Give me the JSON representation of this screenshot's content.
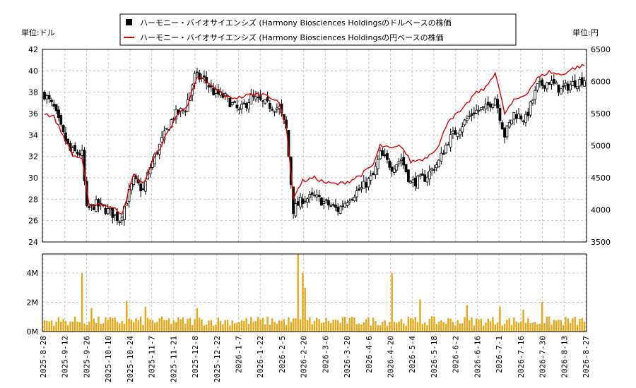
{
  "legend": {
    "usd_label": "ハーモニー・バイオサイエンシズ (Harmony Biosciences Holdingsのドルベースの株価",
    "jpy_label": "ハーモニー・バイオサイエンシズ (Harmony Biosciences Holdingsの円ベースの株価"
  },
  "unit_left": "単位:ドル",
  "unit_right": "単位:円",
  "colors": {
    "candle": "#000000",
    "jpy_line": "#dd0000",
    "volume": "#e6a817",
    "grid": "#c8c8c8"
  },
  "chart_data": [
    {
      "type": "candlestick",
      "y_left": {
        "ticks": [
          24,
          26,
          28,
          30,
          32,
          34,
          36,
          38,
          40,
          42
        ],
        "ylim": [
          24,
          42
        ]
      },
      "y_right": {
        "ticks": [
          3500,
          4000,
          4500,
          5000,
          5500,
          6000,
          6500
        ],
        "ylim": [
          3500,
          6500
        ]
      },
      "x_tick_labels": [
        "2025-8-28",
        "2025-9-12",
        "2025-9-26",
        "2025-10-10",
        "2025-10-24",
        "2025-11-7",
        "2025-11-21",
        "2025-12-8",
        "2025-12-22",
        "2026-1-7",
        "2026-1-22",
        "2026-2-5",
        "2026-2-20",
        "2026-3-6",
        "2026-3-20",
        "2026-4-6",
        "2026-4-20",
        "2026-5-4",
        "2026-5-18",
        "2026-6-2",
        "2026-6-16",
        "2026-7-1",
        "2026-7-16",
        "2026-7-30",
        "2026-8-13",
        "2026-8-27"
      ],
      "usd_close_anchors": [
        [
          0,
          37.8
        ],
        [
          4,
          36.5
        ],
        [
          8,
          34.0
        ],
        [
          11,
          32.5
        ],
        [
          16,
          32.2
        ],
        [
          18,
          27.0
        ],
        [
          22,
          27.5
        ],
        [
          28,
          26.8
        ],
        [
          32,
          26.1
        ],
        [
          38,
          29.8
        ],
        [
          42,
          28.8
        ],
        [
          45,
          31.0
        ],
        [
          50,
          33.5
        ],
        [
          55,
          35.8
        ],
        [
          60,
          36.5
        ],
        [
          64,
          39.5
        ],
        [
          68,
          39.2
        ],
        [
          72,
          38.0
        ],
        [
          77,
          37.5
        ],
        [
          83,
          36.2
        ],
        [
          88,
          37.5
        ],
        [
          95,
          36.8
        ],
        [
          100,
          36.5
        ],
        [
          103,
          34.5
        ],
        [
          106,
          27.0
        ],
        [
          110,
          28.0
        ],
        [
          115,
          28.2
        ],
        [
          120,
          27.6
        ],
        [
          125,
          27.0
        ],
        [
          130,
          28.2
        ],
        [
          135,
          29.0
        ],
        [
          140,
          30.2
        ],
        [
          143,
          32.2
        ],
        [
          148,
          31.0
        ],
        [
          152,
          31.8
        ],
        [
          156,
          29.5
        ],
        [
          162,
          30.0
        ],
        [
          168,
          31.5
        ],
        [
          172,
          33.5
        ],
        [
          178,
          35.0
        ],
        [
          183,
          36.2
        ],
        [
          188,
          36.5
        ],
        [
          192,
          37.5
        ],
        [
          196,
          34.0
        ],
        [
          200,
          36.0
        ],
        [
          205,
          35.5
        ],
        [
          210,
          38.5
        ],
        [
          215,
          39.0
        ],
        [
          220,
          38.2
        ],
        [
          225,
          38.8
        ],
        [
          230,
          39.2
        ]
      ],
      "jpy_close_anchors": [
        [
          0,
          5500
        ],
        [
          4,
          5450
        ],
        [
          8,
          5150
        ],
        [
          12,
          4850
        ],
        [
          16,
          4800
        ],
        [
          19,
          4050
        ],
        [
          23,
          4100
        ],
        [
          28,
          4050
        ],
        [
          33,
          3950
        ],
        [
          38,
          4550
        ],
        [
          42,
          4400
        ],
        [
          46,
          4750
        ],
        [
          51,
          5100
        ],
        [
          56,
          5450
        ],
        [
          61,
          5650
        ],
        [
          65,
          6050
        ],
        [
          68,
          6020
        ],
        [
          72,
          5900
        ],
        [
          78,
          5750
        ],
        [
          83,
          5750
        ],
        [
          88,
          5800
        ],
        [
          95,
          5800
        ],
        [
          100,
          5650
        ],
        [
          103,
          5300
        ],
        [
          106,
          4200
        ],
        [
          110,
          4450
        ],
        [
          115,
          4500
        ],
        [
          120,
          4420
        ],
        [
          125,
          4400
        ],
        [
          130,
          4450
        ],
        [
          135,
          4550
        ],
        [
          140,
          4700
        ],
        [
          143,
          5000
        ],
        [
          148,
          4950
        ],
        [
          152,
          5000
        ],
        [
          156,
          4750
        ],
        [
          162,
          4800
        ],
        [
          168,
          5000
        ],
        [
          172,
          5400
        ],
        [
          178,
          5550
        ],
        [
          183,
          5800
        ],
        [
          188,
          5900
        ],
        [
          192,
          6150
        ],
        [
          196,
          5500
        ],
        [
          200,
          5700
        ],
        [
          205,
          5800
        ],
        [
          210,
          6050
        ],
        [
          215,
          6150
        ],
        [
          220,
          6100
        ],
        [
          225,
          6200
        ],
        [
          230,
          6250
        ]
      ]
    },
    {
      "type": "bar",
      "y_ticks": [
        0,
        2,
        4
      ],
      "y_tick_labels": [
        "0M",
        "2M",
        "4M"
      ],
      "ylim": [
        0,
        5.3
      ],
      "volume_base_millions": 0.8,
      "volume_spikes_millions": [
        [
          16,
          4.0
        ],
        [
          20,
          1.6
        ],
        [
          35,
          2.1
        ],
        [
          43,
          1.7
        ],
        [
          65,
          1.6
        ],
        [
          108,
          5.3
        ],
        [
          110,
          4.0
        ],
        [
          111,
          3.0
        ],
        [
          148,
          4.0
        ],
        [
          160,
          2.2
        ],
        [
          180,
          1.8
        ],
        [
          194,
          1.7
        ],
        [
          204,
          1.5
        ],
        [
          212,
          2.0
        ]
      ]
    }
  ]
}
